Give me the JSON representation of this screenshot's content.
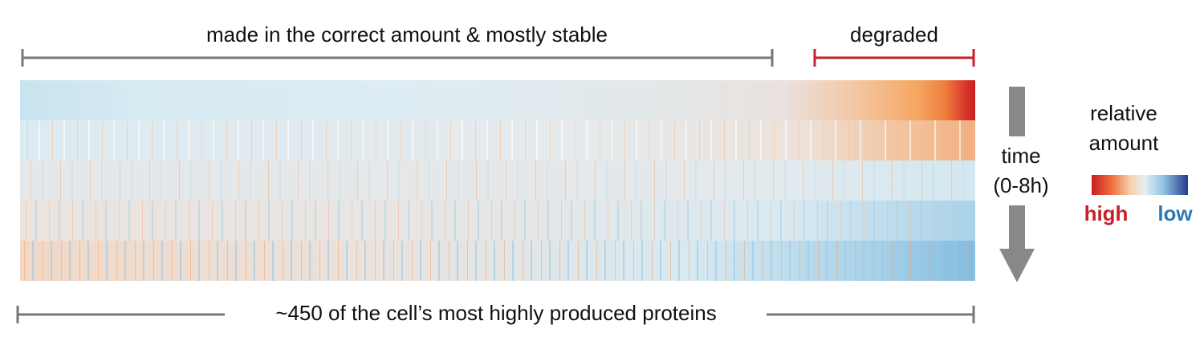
{
  "brackets": {
    "stable": "made in the correct amount & mostly stable",
    "degraded": "degraded"
  },
  "time": {
    "label": "time",
    "range": "(0-8h)"
  },
  "legend": {
    "title": [
      "relative",
      "amount"
    ],
    "high": "high",
    "low": "low"
  },
  "footer": "~450 of the cell’s most highly produced proteins"
}
